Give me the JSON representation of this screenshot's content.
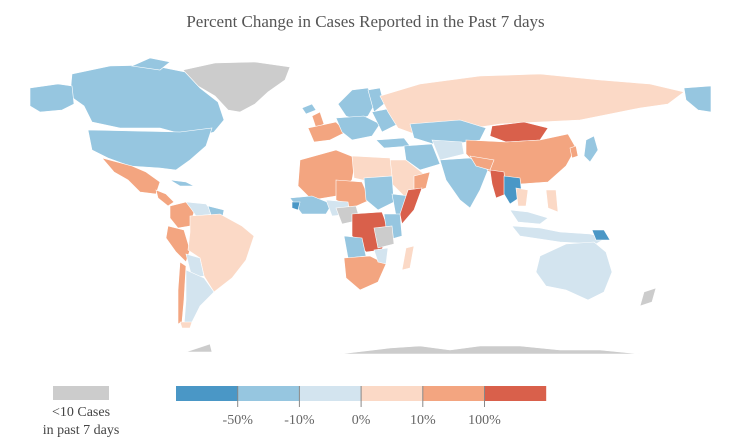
{
  "title": "Percent Change in Cases Reported in the Past 7 days",
  "legend": {
    "no_data": {
      "color": "#cccccc",
      "line1": "<10 Cases",
      "line2": "in past 7 days"
    },
    "bins": [
      {
        "color": "#4a97c6"
      },
      {
        "color": "#96c6e0"
      },
      {
        "color": "#d3e4ef"
      },
      {
        "color": "#fbd9c6"
      },
      {
        "color": "#f3a580"
      },
      {
        "color": "#d9604b"
      }
    ],
    "ticks": [
      "-50%",
      "-10%",
      "0%",
      "10%",
      "100%"
    ]
  },
  "colors": {
    "no_data": "#cccccc",
    "strong_decrease": "#4a97c6",
    "decrease": "#96c6e0",
    "slight_decrease": "#d3e4ef",
    "slight_increase": "#fbd9c6",
    "increase": "#f3a580",
    "strong_increase": "#d9604b"
  }
}
